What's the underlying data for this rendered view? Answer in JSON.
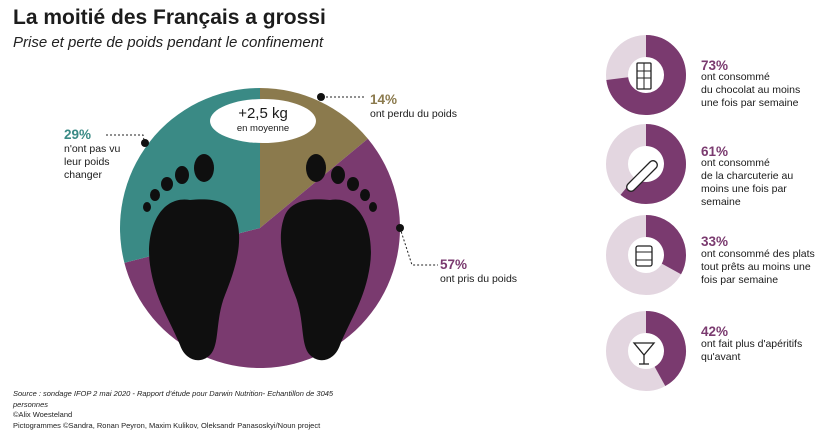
{
  "title": "La moitié des Français a grossi",
  "subtitle": "Prise et perte de poids pendant le confinement",
  "colors": {
    "teal": "#3a8a85",
    "olive": "#8b7a4d",
    "plum": "#7a3a6f",
    "light_plum": "#e3d6e0",
    "foot": "#0f0f0f"
  },
  "badge": {
    "value": "+2,5 kg",
    "caption": "en moyenne"
  },
  "chart_data": {
    "type": "pie",
    "slices": [
      {
        "label": "ont perdu du poids",
        "value": 14,
        "value_label": "14%",
        "color": "#8b7a4d"
      },
      {
        "label": "ont pris du poids",
        "value": 57,
        "value_label": "57%",
        "color": "#7a3a6f"
      },
      {
        "label": "n'ont pas vu leur poids changer",
        "value": 29,
        "value_label": "29%",
        "color": "#3a8a85"
      }
    ],
    "side_stats": [
      {
        "value": 73,
        "value_label": "73%",
        "text": "ont consommé du chocolat au moins une fois par semaine",
        "icon": "chocolate-icon"
      },
      {
        "value": 61,
        "value_label": "61%",
        "text": "ont consommé de la charcuterie au moins une fois par semaine",
        "icon": "sausage-icon"
      },
      {
        "value": 33,
        "value_label": "33%",
        "text": "ont consommé des plats tout prêts au moins une fois par semaine",
        "icon": "canned-food-icon"
      },
      {
        "value": 42,
        "value_label": "42%",
        "text": "ont fait plus d'apéritifs qu'avant",
        "icon": "cocktail-icon"
      }
    ]
  },
  "labels": {
    "slice_teal_pct": "29%",
    "slice_teal_line1": "n'ont pas vu",
    "slice_teal_line2": "leur poids",
    "slice_teal_line3": "changer",
    "slice_olive_pct": "14%",
    "slice_olive_text": "ont perdu du poids",
    "slice_plum_pct": "57%",
    "slice_plum_text": "ont pris du poids",
    "stat1_l1": "ont consommé",
    "stat1_l2": "du chocolat au moins",
    "stat1_l3": "une fois par semaine",
    "stat2_l1": "ont consommé",
    "stat2_l2": "de la charcuterie au",
    "stat2_l3": "moins une fois par",
    "stat2_l4": "semaine",
    "stat3_l1": "ont consommé des plats",
    "stat3_l2": "tout prêts au moins une",
    "stat3_l3": "fois par semaine",
    "stat4_l1": "ont fait plus d'apéritifs",
    "stat4_l2": "qu'avant"
  },
  "source": {
    "line1": "Source : sondage IFOP 2 mai 2020 - Rapport d'étude pour Darwin Nutrition-  Echantillon  de 3045",
    "line2": "personnes",
    "line3": "©Alix Woesteland",
    "line4": "Pictogrammes ©Sandra,  Ronan Peyron,  Maxim Kulikov, Oleksandr Panasoskyi/Noun project"
  }
}
